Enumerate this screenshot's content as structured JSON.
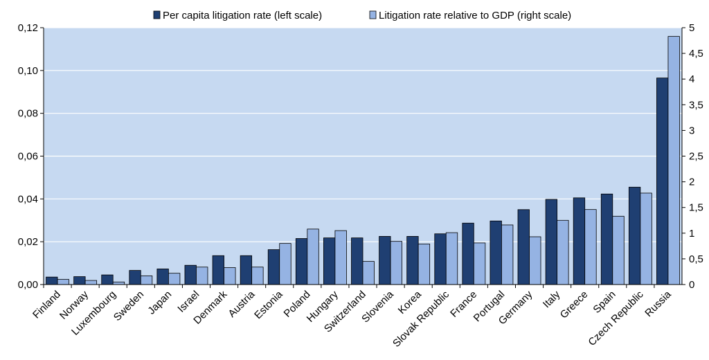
{
  "chart_data": {
    "type": "bar",
    "categories": [
      "Finland",
      "Norway",
      "Luxembourg",
      "Sweden",
      "Japan",
      "Israel",
      "Denmark",
      "Austria",
      "Estonia",
      "Poland",
      "Hungary",
      "Switzerland",
      "Slovenia",
      "Korea",
      "Slovak Republic",
      "France",
      "Portugal",
      "Germany",
      "Italy",
      "Greece",
      "Spain",
      "Czech Republic",
      "Russia"
    ],
    "series": [
      {
        "name": "Per capita litigation rate (left scale)",
        "axis": "left",
        "color": "#1f3f72",
        "values": [
          0.0035,
          0.0037,
          0.0045,
          0.0066,
          0.0073,
          0.009,
          0.0135,
          0.0135,
          0.0163,
          0.0215,
          0.0218,
          0.0218,
          0.0225,
          0.0225,
          0.0237,
          0.0287,
          0.0297,
          0.035,
          0.0398,
          0.0405,
          0.0423,
          0.0455,
          0.0965
        ]
      },
      {
        "name": "Litigation rate relative to GDP (right scale)",
        "axis": "right",
        "color": "#95b3e3",
        "values": [
          0.1,
          0.08,
          0.05,
          0.17,
          0.22,
          0.34,
          0.33,
          0.34,
          0.8,
          1.08,
          1.05,
          0.45,
          0.84,
          0.79,
          1.01,
          0.81,
          1.16,
          0.93,
          1.25,
          1.46,
          1.33,
          1.78,
          4.83
        ]
      }
    ],
    "y_left": {
      "ylim": [
        0,
        0.12
      ],
      "ticks": [
        "0,00",
        "0,02",
        "0,04",
        "0,06",
        "0,08",
        "0,10",
        "0,12"
      ]
    },
    "y_right": {
      "ylim": [
        0,
        5
      ],
      "ticks": [
        "0",
        "0,5",
        "1",
        "1,5",
        "2",
        "2,5",
        "3",
        "3,5",
        "4",
        "4,5",
        "5"
      ]
    },
    "grid": true,
    "legend_position": "top",
    "plot_background": "#c6d9f1",
    "title": "",
    "xlabel": "",
    "ylabel": ""
  }
}
